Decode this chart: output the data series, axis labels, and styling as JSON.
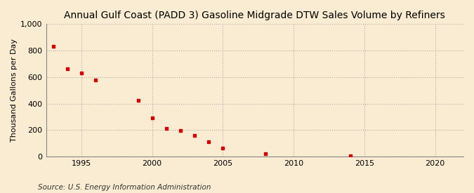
{
  "title": "Annual Gulf Coast (PADD 3) Gasoline Midgrade DTW Sales Volume by Refiners",
  "ylabel": "Thousand Gallons per Day",
  "source": "Source: U.S. Energy Information Administration",
  "background_color": "#faecd2",
  "marker_color": "#cc0000",
  "grid_color": "#aaaaaa",
  "years": [
    1993,
    1994,
    1995,
    1996,
    1999,
    2000,
    2001,
    2002,
    2003,
    2004,
    2005,
    2008,
    2014
  ],
  "values": [
    830,
    665,
    630,
    580,
    425,
    290,
    215,
    195,
    160,
    110,
    65,
    20,
    5
  ],
  "xlim": [
    1992.5,
    2022
  ],
  "ylim": [
    0,
    1000
  ],
  "xticks": [
    1995,
    2000,
    2005,
    2010,
    2015,
    2020
  ],
  "yticks": [
    0,
    200,
    400,
    600,
    800,
    1000
  ],
  "ytick_labels": [
    "0",
    "200",
    "400",
    "600",
    "800",
    "1,000"
  ],
  "title_fontsize": 10,
  "axis_fontsize": 8,
  "source_fontsize": 7.5,
  "ylabel_fontsize": 8
}
